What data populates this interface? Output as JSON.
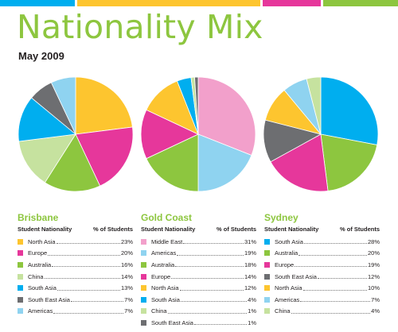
{
  "title": "Nationality Mix",
  "subtitle": "May 2009",
  "colors": {
    "yellow": "#fdc52f",
    "magenta": "#e6379b",
    "green": "#8dc63f",
    "light_green": "#c6e29f",
    "cyan": "#00aeef",
    "gray": "#6d6e71",
    "light_blue": "#8fd3f0",
    "pink": "#f2a0cb"
  },
  "top_bars": [
    "#00aeef",
    "#fdc52f",
    "#e6379b",
    "#8dc63f"
  ],
  "chart_data": [
    {
      "type": "pie",
      "title": "Brisbane",
      "legend_header": [
        "Student Nationality",
        "% of Students"
      ],
      "slices": [
        {
          "label": "North Asia",
          "value": 23,
          "display": "23%",
          "color": "#fdc52f"
        },
        {
          "label": "Europe",
          "value": 20,
          "display": "20%",
          "color": "#e6379b"
        },
        {
          "label": "Australia",
          "value": 16,
          "display": "16%",
          "color": "#8dc63f"
        },
        {
          "label": "China",
          "value": 14,
          "display": "14%",
          "color": "#c6e29f"
        },
        {
          "label": "South Asia",
          "value": 13,
          "display": "13%",
          "color": "#00aeef"
        },
        {
          "label": "South East Asia",
          "value": 7,
          "display": "7%",
          "color": "#6d6e71"
        },
        {
          "label": "Americas",
          "value": 7,
          "display": "7%",
          "color": "#8fd3f0"
        }
      ]
    },
    {
      "type": "pie",
      "title": "Gold Coast",
      "legend_header": [
        "Student Nationality",
        "% of Students"
      ],
      "slices": [
        {
          "label": "Middle East",
          "value": 31,
          "display": "31%",
          "color": "#f2a0cb"
        },
        {
          "label": "Americas",
          "value": 19,
          "display": "19%",
          "color": "#8fd3f0"
        },
        {
          "label": "Australia",
          "value": 18,
          "display": "18%",
          "color": "#8dc63f"
        },
        {
          "label": "Europe",
          "value": 14,
          "display": "14%",
          "color": "#e6379b"
        },
        {
          "label": "North Asia",
          "value": 12,
          "display": "12%",
          "color": "#fdc52f"
        },
        {
          "label": "South Asia",
          "value": 4,
          "display": "4%",
          "color": "#00aeef"
        },
        {
          "label": "China",
          "value": 1,
          "display": "1%",
          "color": "#c6e29f"
        },
        {
          "label": "South East Asia",
          "value": 1,
          "display": "1%",
          "color": "#6d6e71"
        }
      ]
    },
    {
      "type": "pie",
      "title": "Sydney",
      "legend_header": [
        "Student Nationality",
        "% of Students"
      ],
      "slices": [
        {
          "label": "South Asia",
          "value": 28,
          "display": "28%",
          "color": "#00aeef"
        },
        {
          "label": "Australia",
          "value": 20,
          "display": "20%",
          "color": "#8dc63f"
        },
        {
          "label": "Europe",
          "value": 19,
          "display": "19%",
          "color": "#e6379b"
        },
        {
          "label": "South East Asia",
          "value": 12,
          "display": "12%",
          "color": "#6d6e71"
        },
        {
          "label": "North Asia",
          "value": 10,
          "display": "10%",
          "color": "#fdc52f"
        },
        {
          "label": "Americas",
          "value": 7,
          "display": "7%",
          "color": "#8fd3f0"
        },
        {
          "label": "China",
          "value": 4,
          "display": "4%",
          "color": "#c6e29f"
        }
      ]
    }
  ]
}
